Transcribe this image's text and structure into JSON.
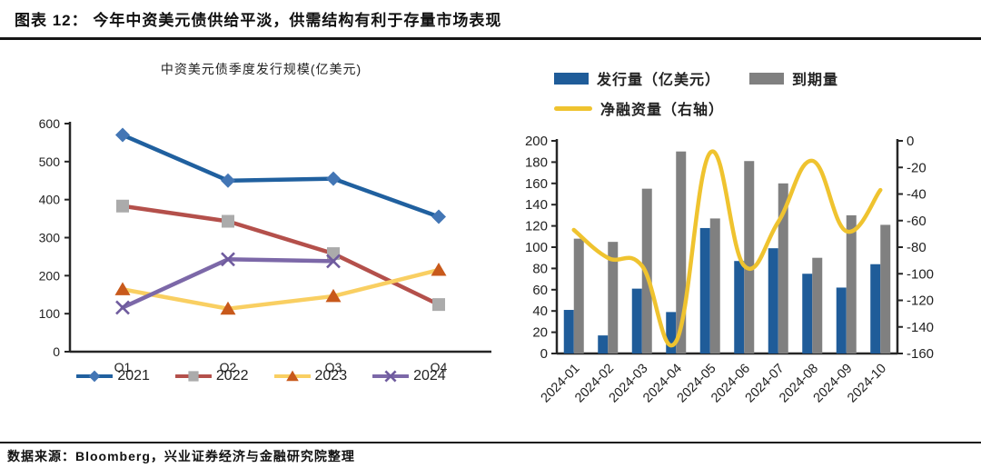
{
  "header": {
    "title": "图表 12： 今年中资美元债供给平淡，供需结构有利于存量市场表现"
  },
  "footer": {
    "source": "数据来源：Bloomberg，兴业证券经济与金融研究院整理"
  },
  "colors": {
    "axis": "#262626",
    "rule": "#151515",
    "bar_blue": "#1F5C99",
    "bar_gray": "#808080",
    "net_yellow": "#EFC32F"
  },
  "chart_data": [
    {
      "type": "line",
      "title": "中资美元债季度发行规模(亿美元)",
      "categories": [
        "Q1",
        "Q2",
        "Q3",
        "Q4"
      ],
      "ylim": [
        0,
        600
      ],
      "yticks": [
        0,
        100,
        200,
        300,
        400,
        500,
        600
      ],
      "grid": false,
      "legend_position": "bottom",
      "series": [
        {
          "name": "2021",
          "values": [
            570,
            450,
            455,
            355
          ],
          "line_color": "#20609F",
          "marker": "diamond",
          "marker_color": "#4376B5"
        },
        {
          "name": "2022",
          "values": [
            383,
            343,
            258,
            124
          ],
          "line_color": "#B4504B",
          "marker": "square",
          "marker_color": "#ABABAB"
        },
        {
          "name": "2023",
          "values": [
            164,
            113,
            146,
            215
          ],
          "line_color": "#F9CF62",
          "marker": "triangle",
          "marker_color": "#C8591B"
        },
        {
          "name": "2024",
          "values": [
            116,
            243,
            238,
            null
          ],
          "line_color": "#7C68A8",
          "marker": "x",
          "marker_color": "#6F5B9E"
        }
      ]
    },
    {
      "type": "bar+line",
      "title": "",
      "categories": [
        "2024-01",
        "2024-02",
        "2024-03",
        "2024-04",
        "2024-05",
        "2024-06",
        "2024-07",
        "2024-08",
        "2024-09",
        "2024-10"
      ],
      "left_ylim": [
        0,
        200
      ],
      "left_yticks": [
        0,
        20,
        40,
        60,
        80,
        100,
        120,
        140,
        160,
        180,
        200
      ],
      "right_ylim": [
        -160,
        0
      ],
      "right_yticks": [
        0,
        -20,
        -40,
        -60,
        -80,
        -100,
        -120,
        -140,
        -160
      ],
      "grid": false,
      "legend_position": "top",
      "series": [
        {
          "name": "发行量（亿美元）",
          "kind": "bar",
          "axis": "left",
          "color": "#1F5C99",
          "values": [
            41,
            17,
            61,
            39,
            118,
            87,
            99,
            75,
            62,
            84
          ]
        },
        {
          "name": "到期量",
          "kind": "bar",
          "axis": "left",
          "color": "#808080",
          "values": [
            108,
            105,
            155,
            190,
            127,
            181,
            160,
            90,
            130,
            121
          ]
        },
        {
          "name": "净融资量（右轴）",
          "kind": "line",
          "axis": "right",
          "color": "#EFC32F",
          "values": [
            -67,
            -88,
            -94,
            -151,
            -9,
            -94,
            -61,
            -15,
            -68,
            -37
          ]
        }
      ]
    }
  ]
}
